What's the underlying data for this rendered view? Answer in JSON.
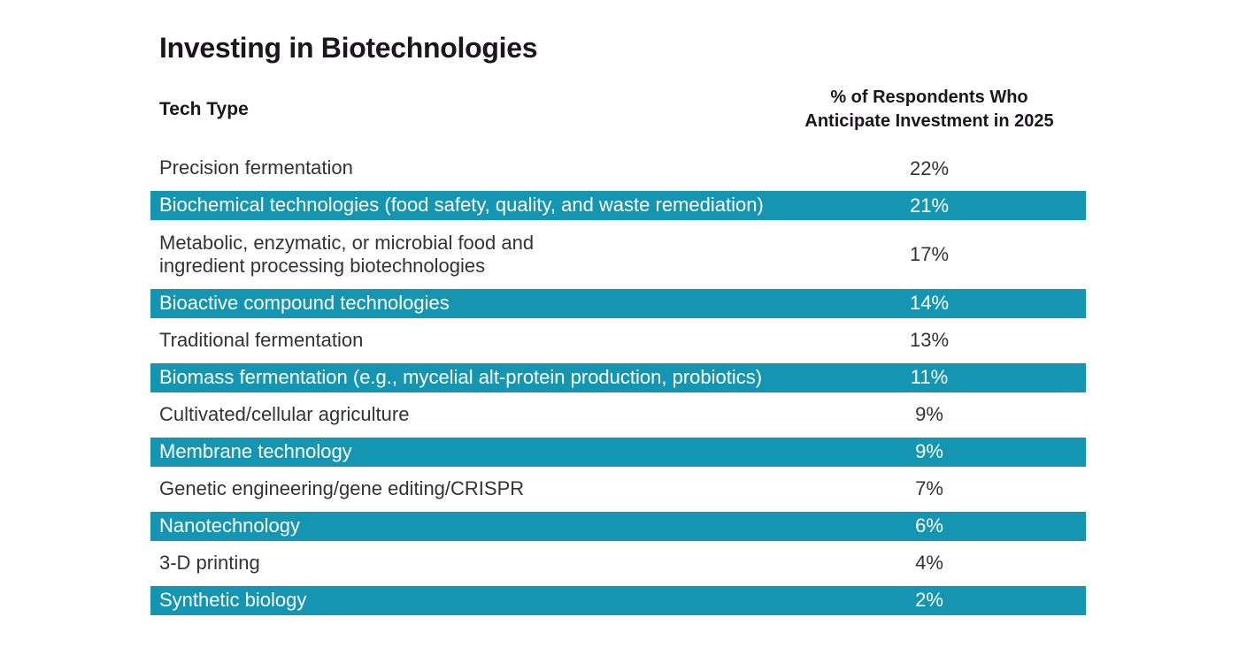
{
  "page": {
    "title": "Investing in Biotechnologies"
  },
  "table": {
    "headers": {
      "tech_type": "Tech Type",
      "percent": "% of Respondents Who\nAnticipate Investment in 2025"
    },
    "rows": [
      {
        "tech": "Precision fermentation",
        "percent": "22%",
        "highlighted": false
      },
      {
        "tech": "Biochemical technologies (food safety, quality, and waste remediation)",
        "percent": "21%",
        "highlighted": true
      },
      {
        "tech": "Metabolic, enzymatic, or microbial food and\ningredient processing biotechnologies",
        "percent": "17%",
        "highlighted": false
      },
      {
        "tech": "Bioactive compound technologies",
        "percent": "14%",
        "highlighted": true
      },
      {
        "tech": "Traditional fermentation",
        "percent": "13%",
        "highlighted": false
      },
      {
        "tech": "Biomass fermentation (e.g., mycelial alt-protein production, probiotics)",
        "percent": "11%",
        "highlighted": true
      },
      {
        "tech": "Cultivated/cellular agriculture",
        "percent": "9%",
        "highlighted": false
      },
      {
        "tech": "Membrane technology",
        "percent": "9%",
        "highlighted": true
      },
      {
        "tech": "Genetic engineering/gene editing/CRISPR",
        "percent": "7%",
        "highlighted": false
      },
      {
        "tech": "Nanotechnology",
        "percent": "6%",
        "highlighted": true
      },
      {
        "tech": "3-D printing",
        "percent": "4%",
        "highlighted": false
      },
      {
        "tech": "Synthetic biology",
        "percent": "2%",
        "highlighted": true
      }
    ]
  },
  "colors": {
    "highlight_row_bg": "#1496B2",
    "highlight_row_text": "#FFFFFF",
    "body_text": "#333333",
    "heading_text": "#1A171B",
    "page_bg": "#FFFFFF"
  },
  "chart_data": {
    "type": "table",
    "title": "Investing in Biotechnologies",
    "columns": [
      "Tech Type",
      "% of Respondents Who Anticipate Investment in 2025"
    ],
    "categories": [
      "Precision fermentation",
      "Biochemical technologies (food safety, quality, and waste remediation)",
      "Metabolic, enzymatic, or microbial food and ingredient processing biotechnologies",
      "Bioactive compound technologies",
      "Traditional fermentation",
      "Biomass fermentation (e.g., mycelial alt-protein production, probiotics)",
      "Cultivated/cellular agriculture",
      "Membrane technology",
      "Genetic engineering/gene editing/CRISPR",
      "Nanotechnology",
      "3-D printing",
      "Synthetic biology"
    ],
    "values": [
      22,
      21,
      17,
      14,
      13,
      11,
      9,
      9,
      7,
      6,
      4,
      2
    ],
    "value_unit": "%",
    "layout": "alternating rows highlighted teal (#1496B2), even-index rows white"
  }
}
